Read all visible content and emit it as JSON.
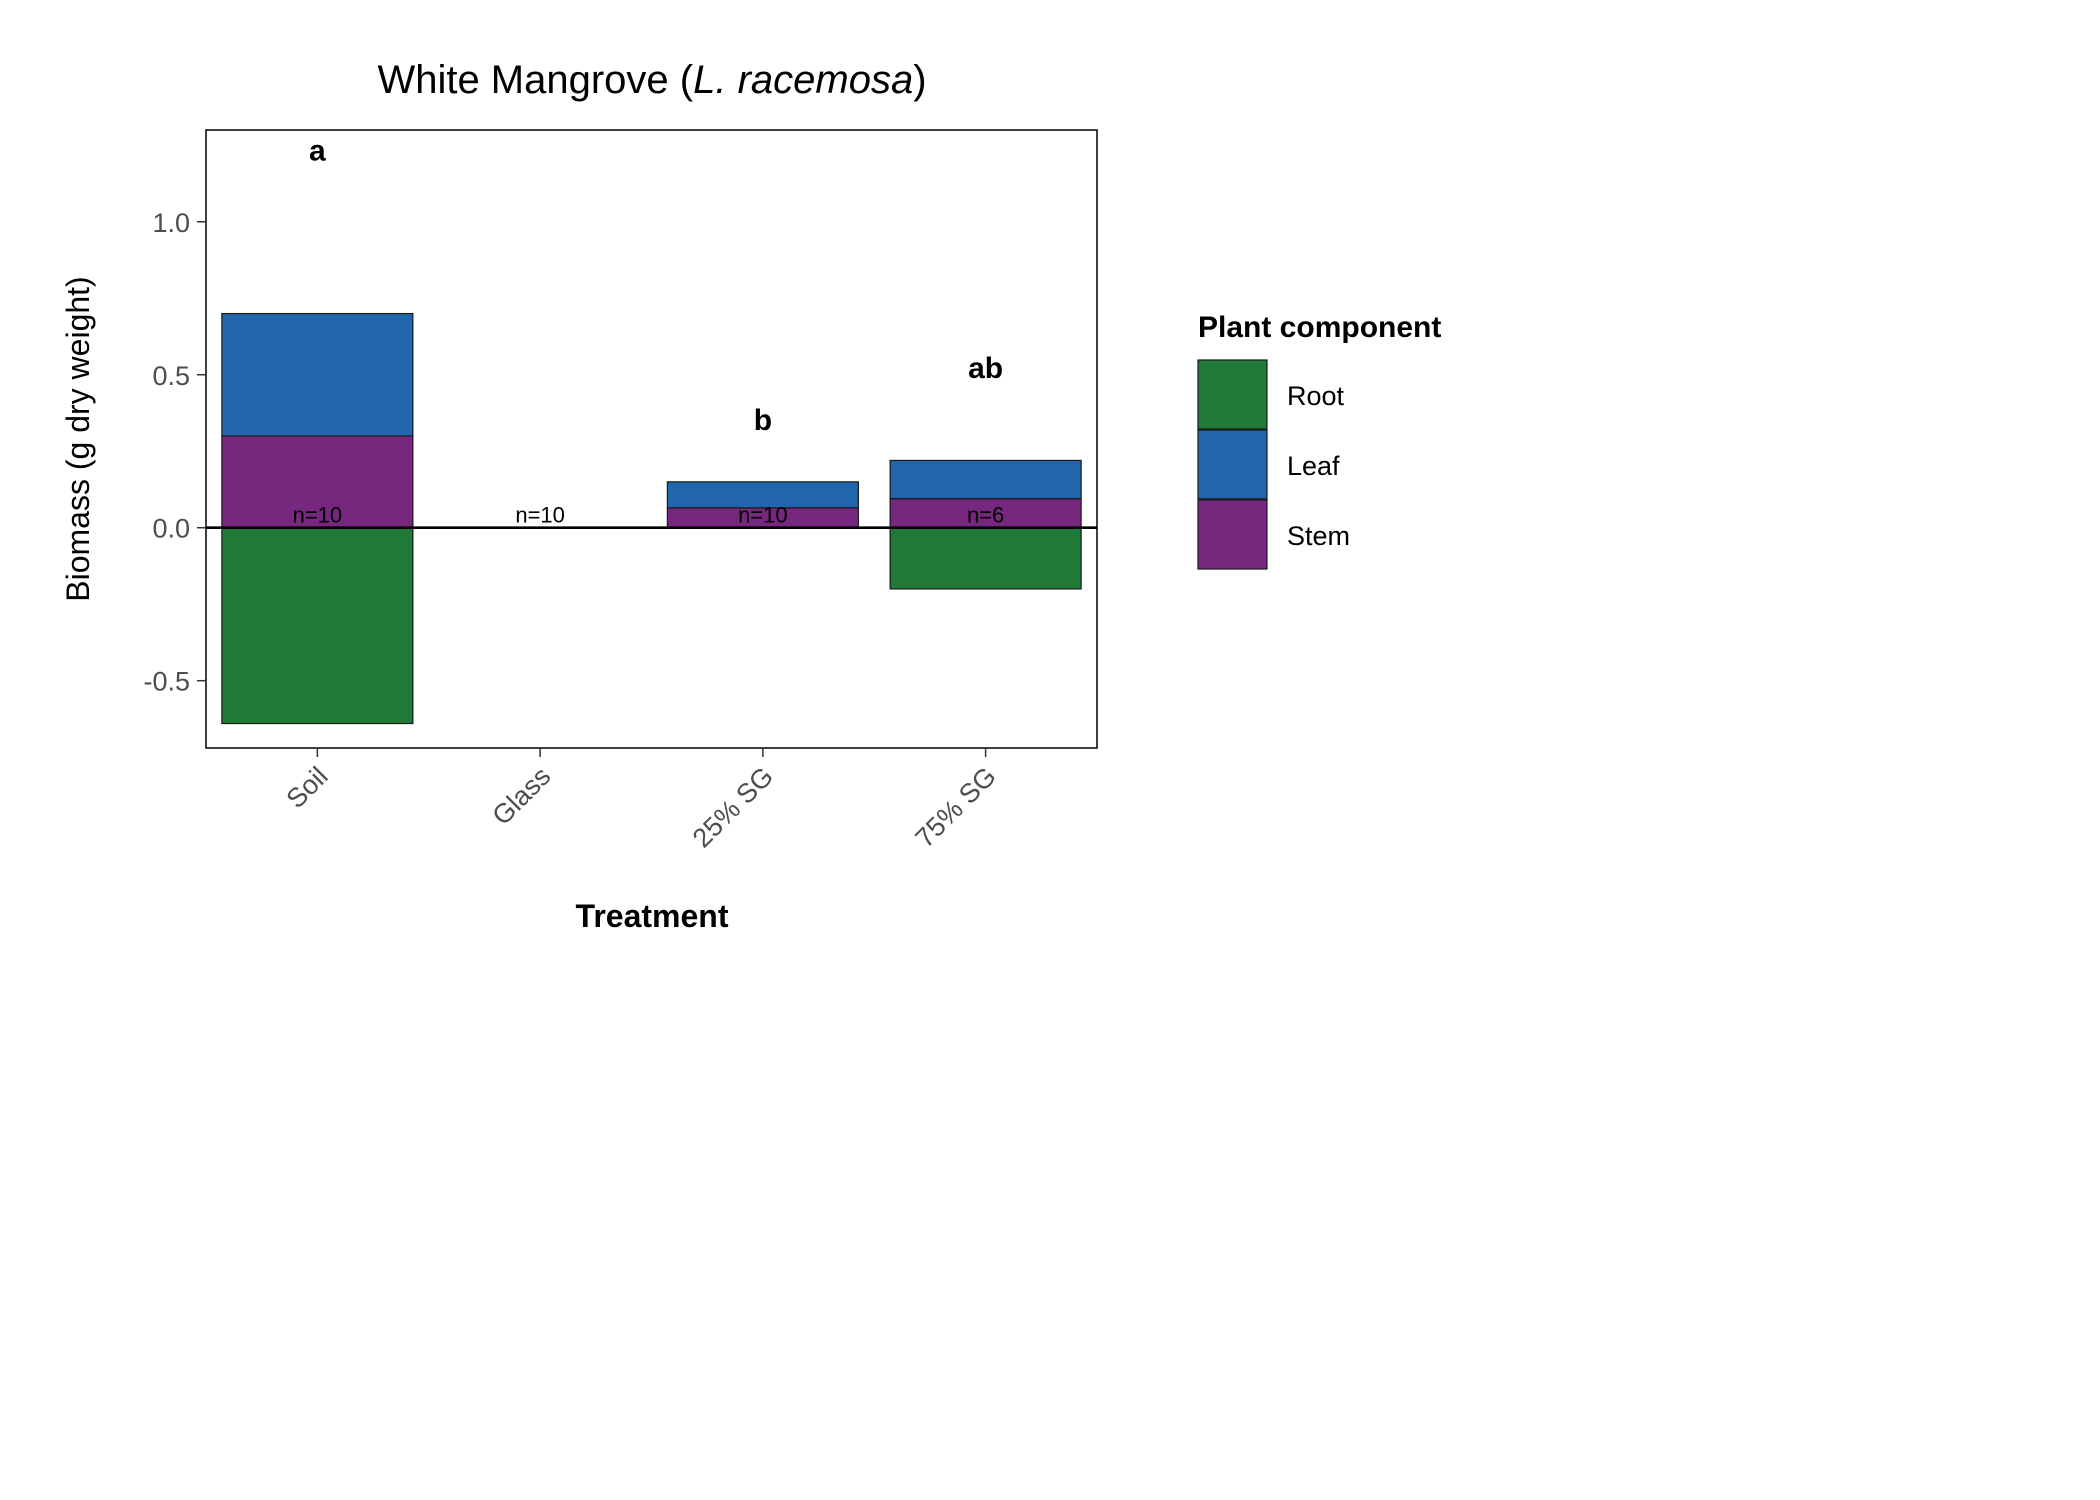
{
  "chart_data": {
    "type": "bar",
    "stacked": true,
    "title_main": "White Mangrove (",
    "title_italic": "L. racemosa",
    "title_close": ")",
    "xlabel": "Treatment",
    "ylabel": "Biomass (g dry weight)",
    "categories": [
      "Soil",
      "Glass",
      "25% SG",
      "75% SG"
    ],
    "ylim": [
      -0.72,
      1.3
    ],
    "yticks": [
      -0.5,
      0.0,
      0.5,
      1.0
    ],
    "ytick_labels": [
      "-0.5",
      "0.0",
      "0.5",
      "1.0"
    ],
    "series": [
      {
        "name": "Root",
        "color": "#1f7a37",
        "values": [
          -0.64,
          0.0,
          0.0,
          -0.2
        ]
      },
      {
        "name": "Stem",
        "color": "#76287f",
        "values": [
          0.3,
          0.0,
          0.065,
          0.095
        ]
      },
      {
        "name": "Leaf",
        "color": "#2166ac",
        "values": [
          0.4,
          0.0,
          0.085,
          0.125
        ]
      }
    ],
    "n_labels": [
      "n=10",
      "n=10",
      "n=10",
      "n=6"
    ],
    "sig_labels": [
      {
        "category": "Soil",
        "text": "a",
        "y": 1.2
      },
      {
        "category": "25% SG",
        "text": "b",
        "y": 0.32
      },
      {
        "category": "75% SG",
        "text": "ab",
        "y": 0.49
      }
    ],
    "legend": {
      "title": "Plant component",
      "position": "right",
      "items": [
        {
          "name": "Root",
          "color": "#1f7a37"
        },
        {
          "name": "Leaf",
          "color": "#2166ac"
        },
        {
          "name": "Stem",
          "color": "#76287f"
        }
      ]
    },
    "grid": false
  }
}
